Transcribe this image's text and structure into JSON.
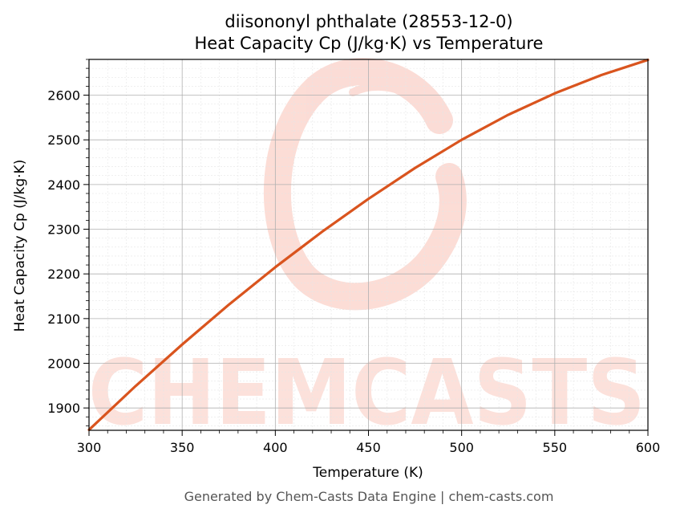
{
  "chart_data": {
    "type": "line",
    "title": "diisononyl phthalate (28553-12-0)",
    "subtitle": "Heat Capacity Cp (J/kg·K) vs Temperature",
    "xlabel": "Temperature (K)",
    "ylabel": "Heat Capacity Cp (J/kg·K)",
    "xlim": [
      300,
      600
    ],
    "ylim": [
      1850,
      2680
    ],
    "x_ticks": [
      300,
      350,
      400,
      450,
      500,
      550,
      600
    ],
    "y_ticks": [
      1900,
      2000,
      2100,
      2200,
      2300,
      2400,
      2500,
      2600
    ],
    "grid": true,
    "series": [
      {
        "color": "#d9541e",
        "x": [
          300,
          325,
          350,
          375,
          400,
          425,
          450,
          475,
          500,
          525,
          550,
          575,
          600
        ],
        "y": [
          1851,
          1949,
          2042,
          2131,
          2215,
          2294,
          2368,
          2437,
          2500,
          2556,
          2604,
          2645,
          2679
        ]
      }
    ]
  },
  "watermark": {
    "text": "CHEMCASTS",
    "color": "#fbd7cf"
  },
  "footer": "Generated by Chem-Casts Data Engine | chem-casts.com"
}
